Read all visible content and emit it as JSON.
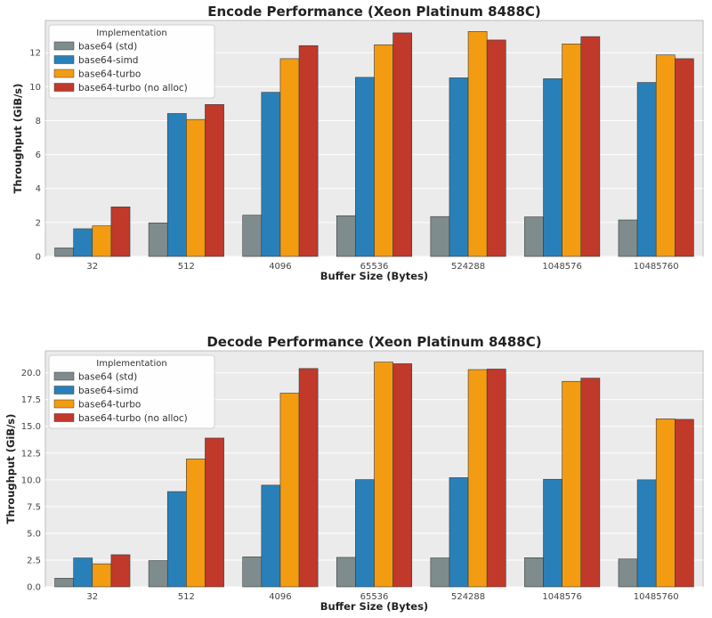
{
  "chart_data": [
    {
      "type": "bar",
      "title": "Encode Performance (Xeon Platinum 8488C)",
      "xlabel": "Buffer Size (Bytes)",
      "ylabel": "Throughput (GiB/s)",
      "categories": [
        "32",
        "512",
        "4096",
        "65536",
        "524288",
        "1048576",
        "10485760"
      ],
      "ylim": [
        0,
        13.9
      ],
      "yticks": [
        0,
        2,
        4,
        6,
        8,
        10,
        12
      ],
      "tick_decimals": 0,
      "grid": true,
      "legend": {
        "title": "Implementation",
        "position": "top-left"
      },
      "series": [
        {
          "name": "base64 (std)",
          "color": "#7f8c8d",
          "values": [
            0.5,
            1.98,
            2.43,
            2.4,
            2.35,
            2.33,
            2.15
          ]
        },
        {
          "name": "base64-simd",
          "color": "#2980b9",
          "values": [
            1.63,
            8.42,
            9.67,
            10.55,
            10.52,
            10.47,
            10.25
          ]
        },
        {
          "name": "base64-turbo",
          "color": "#f39c12",
          "values": [
            1.8,
            8.07,
            11.65,
            12.47,
            13.25,
            12.52,
            11.87
          ]
        },
        {
          "name": "base64-turbo (no alloc)",
          "color": "#c0392b",
          "values": [
            2.92,
            8.95,
            12.42,
            13.17,
            12.75,
            12.95,
            11.65
          ]
        }
      ]
    },
    {
      "type": "bar",
      "title": "Decode Performance (Xeon Platinum 8488C)",
      "xlabel": "Buffer Size (Bytes)",
      "ylabel": "Throughput (GiB/s)",
      "categories": [
        "32",
        "512",
        "4096",
        "65536",
        "524288",
        "1048576",
        "10485760"
      ],
      "ylim": [
        0,
        22.05
      ],
      "yticks": [
        0,
        2.5,
        5,
        7.5,
        10,
        12.5,
        15,
        17.5,
        20
      ],
      "tick_decimals": 1,
      "grid": true,
      "legend": {
        "title": "Implementation",
        "position": "top-left"
      },
      "series": [
        {
          "name": "base64 (std)",
          "color": "#7f8c8d",
          "values": [
            0.8,
            2.45,
            2.8,
            2.75,
            2.7,
            2.72,
            2.6
          ]
        },
        {
          "name": "base64-simd",
          "color": "#2980b9",
          "values": [
            2.7,
            8.9,
            9.5,
            10.02,
            10.2,
            10.05,
            10.0
          ]
        },
        {
          "name": "base64-turbo",
          "color": "#f39c12",
          "values": [
            2.15,
            11.95,
            18.1,
            21.0,
            20.3,
            19.2,
            15.7
          ]
        },
        {
          "name": "base64-turbo (no alloc)",
          "color": "#c0392b",
          "values": [
            3.0,
            13.9,
            20.4,
            20.85,
            20.35,
            19.5,
            15.65
          ]
        }
      ]
    }
  ]
}
